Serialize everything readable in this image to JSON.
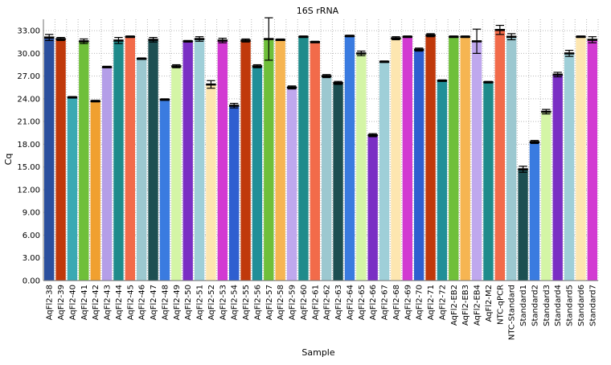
{
  "chart_data": {
    "type": "bar",
    "title": "16S rRNA",
    "xlabel": "Sample",
    "ylabel": "Cq",
    "ylim": [
      0,
      34.5
    ],
    "yticks": [
      "0.00",
      "3.00",
      "6.00",
      "9.00",
      "12.00",
      "15.00",
      "18.00",
      "21.00",
      "24.00",
      "27.00",
      "30.00",
      "33.00"
    ],
    "grid": true,
    "categories": [
      "AqFl2-38",
      "AqFl2-39",
      "AqFl2-40",
      "AqFl2-41",
      "AqFl2-42",
      "AqFl2-43",
      "AqFl2-44",
      "AqFl2-45",
      "AqFl2-46",
      "AqFl2-47",
      "AqFl2-48",
      "AqFl2-49",
      "AqFl2-50",
      "AqFl2-51",
      "AqFl2-52",
      "AqFl2-53",
      "AqFl2-54",
      "AqFl2-55",
      "AqFl2-56",
      "AqFl2-57",
      "AqFl2-58",
      "AqFl2-59",
      "AqFl2-60",
      "AqFl2-61",
      "AqFl2-62",
      "AqFl2-63",
      "AqFl2-64",
      "AqFl2-65",
      "AqFl2-66",
      "AqFl2-67",
      "AqFl2-68",
      "AqFl2-69",
      "AqFl2-70",
      "AqFl2-71",
      "AqFl2-72",
      "AqFl2-EB2",
      "AqFl2-EB3",
      "AqFl2-EB4",
      "AqFl2-M2",
      "NTC-qPCR",
      "NTC-Standard",
      "Standard1",
      "Standard2",
      "Standard3",
      "Standard4",
      "Standard5",
      "Standard6",
      "Standard7"
    ],
    "values": [
      32.1,
      31.9,
      24.2,
      31.6,
      23.7,
      28.2,
      31.7,
      32.2,
      29.3,
      31.8,
      23.9,
      28.3,
      31.6,
      31.9,
      25.9,
      31.7,
      23.1,
      31.7,
      28.3,
      31.9,
      31.8,
      25.5,
      32.2,
      31.5,
      27.0,
      26.1,
      32.3,
      30.0,
      19.2,
      28.9,
      32.0,
      32.2,
      30.5,
      32.4,
      26.4,
      32.2,
      32.2,
      31.6,
      26.2,
      33.1,
      32.2,
      14.7,
      18.3,
      22.3,
      27.2,
      30.0,
      32.2,
      31.8
    ],
    "errors": [
      0.4,
      0.2,
      0.1,
      0.3,
      0.1,
      0.1,
      0.4,
      0.1,
      0.1,
      0.3,
      0.1,
      0.2,
      0.1,
      0.3,
      0.5,
      0.3,
      0.3,
      0.2,
      0.2,
      2.8,
      0.1,
      0.2,
      0.1,
      0.1,
      0.2,
      0.2,
      0.1,
      0.3,
      0.2,
      0.1,
      0.2,
      0.1,
      0.2,
      0.2,
      0.1,
      0.1,
      0.1,
      1.6,
      0.1,
      0.6,
      0.4,
      0.4,
      0.2,
      0.3,
      0.3,
      0.4,
      0.1,
      0.4
    ],
    "colors": [
      "#2b4f9e",
      "#c0390b",
      "#3aa9b3",
      "#6fbf3a",
      "#f0a030",
      "#b49ee8",
      "#1f8b8b",
      "#f26b4a",
      "#9cc8d0",
      "#1d4f52",
      "#3a7be0",
      "#d4f5a6",
      "#7a2fc4",
      "#9fcfd8",
      "#fde6b0",
      "#d23ad2",
      "#2f5fd0",
      "#c0390b",
      "#218f98",
      "#6fbf3a",
      "#f6b552",
      "#bfa8ee",
      "#1f8b8b",
      "#f26b4a",
      "#9cc8d0",
      "#1d4f52",
      "#3a7be0",
      "#d4f5a6",
      "#7a2fc4",
      "#9fcfd8",
      "#fde6b0",
      "#d23ad2",
      "#2f5fd0",
      "#c0390b",
      "#218f98",
      "#6fbf3a",
      "#f6b552",
      "#bfa8ee",
      "#1f8b8b",
      "#f26b4a",
      "#9cc8d0",
      "#1d4f52",
      "#3a7be0",
      "#d4f5a6",
      "#7a2fc4",
      "#9fcfd8",
      "#fde6b0",
      "#d23ad2"
    ]
  }
}
